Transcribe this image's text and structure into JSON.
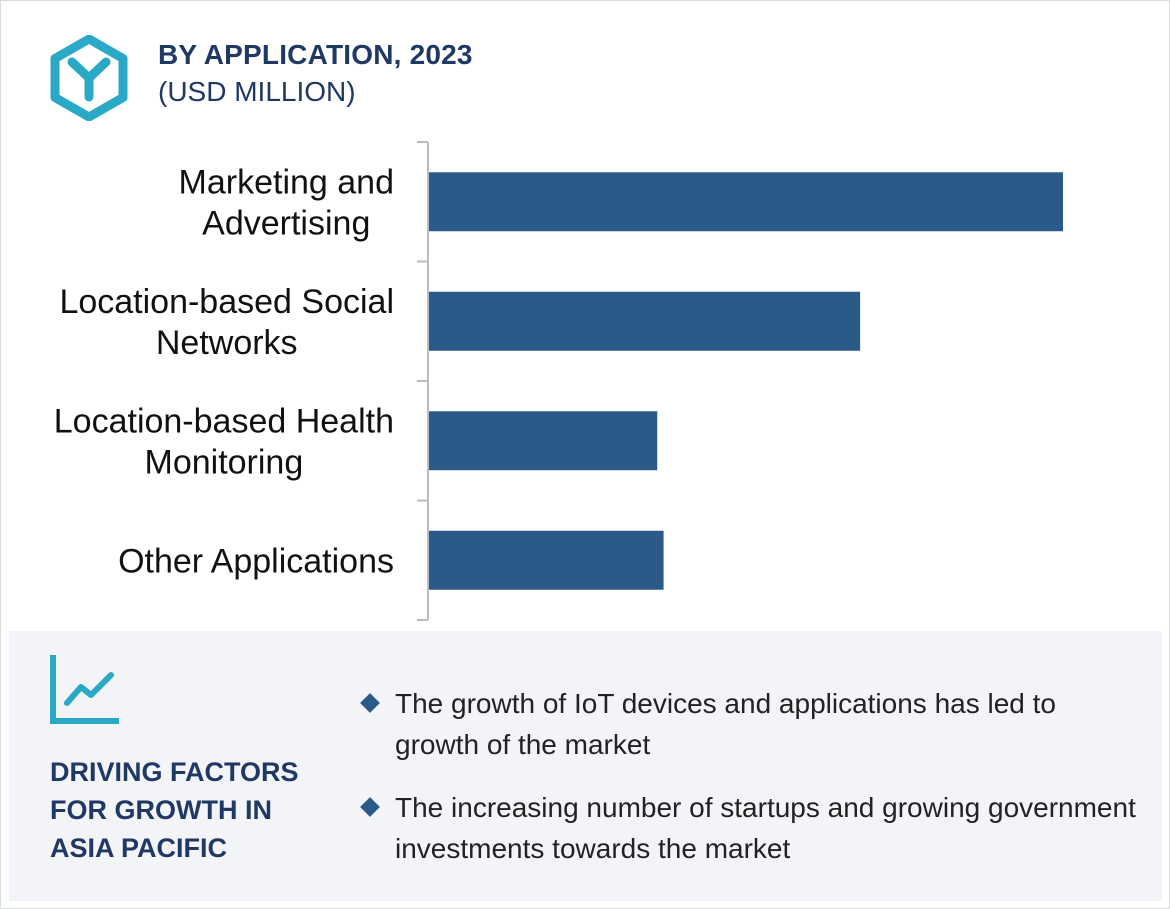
{
  "header": {
    "title": "BY APPLICATION, 2023",
    "subtitle": "(USD MILLION)",
    "logo_icon": "hexagon-y-logo-icon"
  },
  "colors": {
    "bar": "#2b5a89",
    "title": "#1f3864",
    "accent": "#2aa9c6",
    "panel_bg": "#f3f4f8"
  },
  "chart_data": {
    "type": "bar",
    "orientation": "horizontal",
    "title": "BY APPLICATION, 2023",
    "subtitle": "(USD MILLION)",
    "categories": [
      [
        "Marketing and",
        "Advertising"
      ],
      [
        "Location-based Social",
        "Networks"
      ],
      [
        "Location-based Health",
        "Monitoring"
      ],
      [
        "Other Applications"
      ]
    ],
    "values": [
      100,
      68,
      36,
      37
    ],
    "xlim": [
      0,
      100
    ],
    "xlabel": "",
    "ylabel": "",
    "grid": false,
    "value_axis_shown": false
  },
  "drivers": {
    "icon": "trend-line-chart-icon",
    "title": "DRIVING FACTORS FOR GROWTH IN ASIA PACIFIC",
    "items": [
      "The growth of IoT devices and applications has led to growth of the market",
      "The increasing number of startups and growing government investments towards the market"
    ]
  }
}
